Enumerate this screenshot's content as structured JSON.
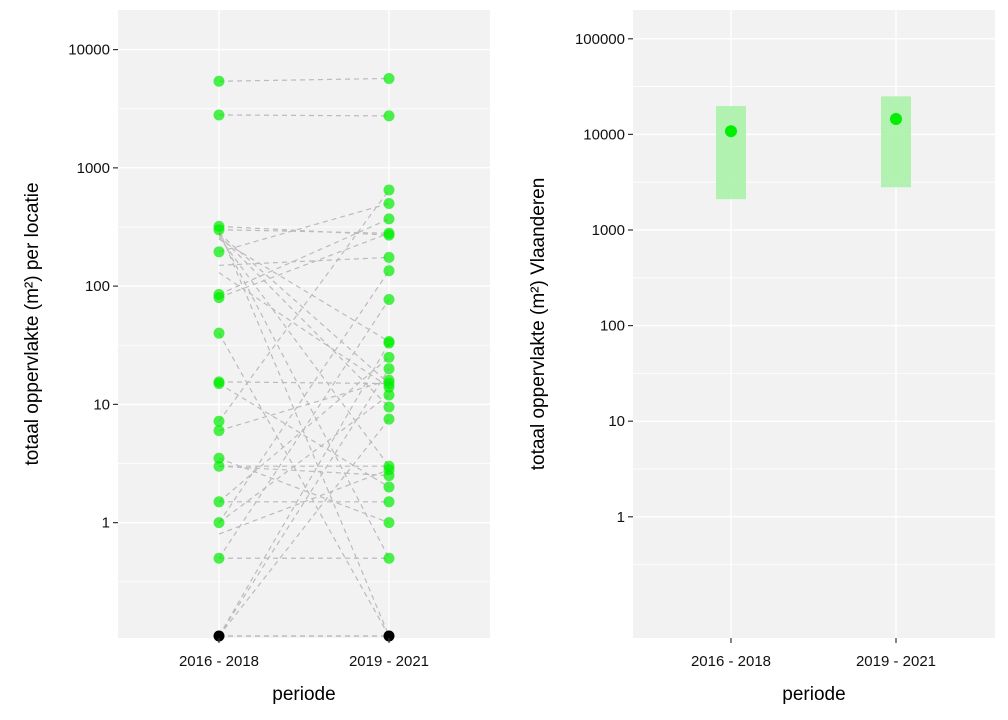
{
  "chart_data": [
    {
      "type": "scatter",
      "panel": "left",
      "scale": "log10",
      "xlabel": "periode",
      "ylabel": "totaal oppervlakte (m²) per locatie",
      "categories": [
        "2016 - 2018",
        "2019 - 2021"
      ],
      "y_ticks": [
        {
          "value": 1,
          "label": "1"
        },
        {
          "value": 10,
          "label": "10"
        },
        {
          "value": 100,
          "label": "100"
        },
        {
          "value": 1000,
          "label": "1000"
        },
        {
          "value": 10000,
          "label": "10000"
        }
      ],
      "ylim": [
        0.11,
        20000
      ],
      "grid": true,
      "point_color": "#00ee00",
      "zero_point_color": "#000000",
      "line_color": "#bbbbbb",
      "points": {
        "2016 - 2018": [
          5400,
          2800,
          320,
          300,
          195,
          85,
          80,
          40,
          15.5,
          15,
          7.2,
          6,
          3.5,
          3,
          1.5,
          1,
          0.5,
          0.11
        ],
        "2019 - 2021": [
          5700,
          2750,
          650,
          500,
          370,
          280,
          270,
          175,
          135,
          77,
          34,
          33,
          25,
          20,
          16,
          15,
          14,
          12,
          9.5,
          7.5,
          3,
          2.8,
          2.5,
          2,
          1.5,
          1,
          0.5,
          0.11
        ]
      },
      "connections": [
        [
          5400,
          5700
        ],
        [
          2800,
          2750
        ],
        [
          320,
          270
        ],
        [
          300,
          0.11
        ],
        [
          300,
          280
        ],
        [
          280,
          15
        ],
        [
          280,
          0.5
        ],
        [
          270,
          9.5
        ],
        [
          260,
          3
        ],
        [
          250,
          34
        ],
        [
          195,
          500
        ],
        [
          150,
          175
        ],
        [
          130,
          14
        ],
        [
          85,
          370
        ],
        [
          80,
          280
        ],
        [
          40,
          0.11
        ],
        [
          15.5,
          15
        ],
        [
          15,
          2
        ],
        [
          7.2,
          650
        ],
        [
          6,
          16
        ],
        [
          3.5,
          1
        ],
        [
          3,
          3
        ],
        [
          3,
          2.5
        ],
        [
          1.5,
          1.5
        ],
        [
          1.5,
          25
        ],
        [
          1,
          135
        ],
        [
          1,
          12
        ],
        [
          0.8,
          2.8
        ],
        [
          0.5,
          0.5
        ],
        [
          0.5,
          77
        ],
        [
          0.11,
          33
        ],
        [
          0.11,
          20
        ],
        [
          0.11,
          7.5
        ],
        [
          0.11,
          0.11
        ],
        [
          0.11,
          0.11
        ]
      ]
    },
    {
      "type": "scatter",
      "panel": "right",
      "scale": "log10",
      "xlabel": "periode",
      "ylabel": "totaal oppervlakte (m²) Vlaanderen",
      "categories": [
        "2016 - 2018",
        "2019 - 2021"
      ],
      "y_ticks": [
        {
          "value": 1,
          "label": "1"
        },
        {
          "value": 10,
          "label": "10"
        },
        {
          "value": 100,
          "label": "100"
        },
        {
          "value": 1000,
          "label": "1000"
        },
        {
          "value": 10000,
          "label": "10000"
        },
        {
          "value": 100000,
          "label": "100000"
        }
      ],
      "ylim": [
        0.054,
        200000
      ],
      "grid": true,
      "point_color": "#00ee00",
      "range_color": "#aaf2aa",
      "values": [
        10800,
        14500
      ],
      "ranges": [
        [
          2100,
          19800
        ],
        [
          2800,
          25000
        ]
      ]
    }
  ]
}
